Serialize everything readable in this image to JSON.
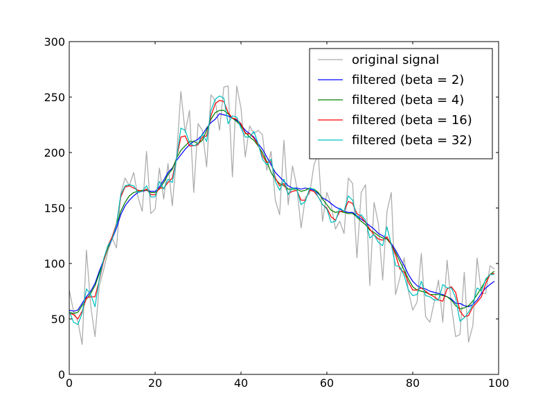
{
  "chart_data": {
    "type": "line",
    "title": "",
    "xlabel": "",
    "ylabel": "",
    "xlim": [
      0,
      100
    ],
    "ylim": [
      0,
      300
    ],
    "xticks": [
      "0",
      "20",
      "40",
      "60",
      "80",
      "100"
    ],
    "yticks": [
      "0",
      "50",
      "100",
      "150",
      "200",
      "250",
      "300"
    ],
    "grid": false,
    "legend_position": "top-right",
    "x": [
      0,
      1,
      2,
      3,
      4,
      5,
      6,
      7,
      8,
      9,
      10,
      11,
      12,
      13,
      14,
      15,
      16,
      17,
      18,
      19,
      20,
      21,
      22,
      23,
      24,
      25,
      26,
      27,
      28,
      29,
      30,
      31,
      32,
      33,
      34,
      35,
      36,
      37,
      38,
      39,
      40,
      41,
      42,
      43,
      44,
      45,
      46,
      47,
      48,
      49,
      50,
      51,
      52,
      53,
      54,
      55,
      56,
      57,
      58,
      59,
      60,
      61,
      62,
      63,
      64,
      65,
      66,
      67,
      68,
      69,
      70,
      71,
      72,
      73,
      74,
      75,
      76,
      77,
      78,
      79,
      80,
      81,
      82,
      83,
      84,
      85,
      86,
      87,
      88,
      89,
      90,
      91,
      92,
      93,
      94,
      95,
      96,
      97,
      98,
      99
    ],
    "series": [
      {
        "name": "original signal",
        "color": "#aaaaaa",
        "values": [
          76,
          57,
          48,
          27,
          112,
          62,
          34,
          80,
          94,
          111,
          123,
          114,
          163,
          177,
          170,
          182,
          160,
          147,
          201,
          145,
          149,
          186,
          158,
          190,
          152,
          197,
          255,
          218,
          238,
          164,
          226,
          220,
          187,
          252,
          247,
          220,
          259,
          260,
          178,
          260,
          240,
          196,
          224,
          217,
          220,
          216,
          184,
          201,
          157,
          144,
          211,
          153,
          188,
          169,
          132,
          160,
          163,
          189,
          199,
          138,
          164,
          153,
          131,
          138,
          127,
          177,
          172,
          105,
          164,
          171,
          80,
          155,
          136,
          85,
          147,
          164,
          72,
          87,
          105,
          75,
          58,
          65,
          109,
          52,
          47,
          65,
          85,
          47,
          103,
          62,
          34,
          36,
          92,
          29,
          44,
          105,
          73,
          73,
          98,
          95
        ]
      },
      {
        "name": "filtered (beta = 2)",
        "color": "#0000ff",
        "values": [
          58,
          57,
          58,
          64,
          70,
          75,
          82,
          93,
          103,
          114,
          122,
          132,
          144,
          152,
          157,
          161,
          164,
          165,
          166,
          165,
          165,
          169,
          175,
          182,
          186,
          193,
          198,
          203,
          207,
          210,
          212,
          216,
          222,
          227,
          230,
          235,
          234,
          233,
          231,
          229,
          225,
          220,
          217,
          214,
          208,
          203,
          196,
          189,
          182,
          178,
          174,
          170,
          168,
          168,
          167,
          168,
          167,
          166,
          163,
          159,
          157,
          154,
          151,
          149,
          147,
          146,
          146,
          143,
          140,
          137,
          134,
          131,
          127,
          125,
          122,
          118,
          112,
          105,
          98,
          90,
          84,
          80,
          78,
          77,
          75,
          74,
          73,
          72,
          70,
          68,
          64,
          64,
          62,
          61,
          63,
          67,
          73,
          78,
          81,
          84
        ]
      },
      {
        "name": "filtered (beta = 4)",
        "color": "#008000",
        "values": [
          56,
          55,
          56,
          62,
          68,
          73,
          80,
          91,
          102,
          114,
          124,
          135,
          147,
          155,
          161,
          164,
          165,
          166,
          166,
          164,
          164,
          167,
          173,
          180,
          185,
          195,
          202,
          206,
          210,
          210,
          208,
          211,
          220,
          230,
          236,
          238,
          238,
          235,
          231,
          228,
          224,
          218,
          214,
          211,
          206,
          200,
          192,
          182,
          176,
          172,
          170,
          167,
          167,
          167,
          165,
          166,
          168,
          167,
          164,
          158,
          153,
          148,
          146,
          147,
          146,
          145,
          145,
          142,
          138,
          135,
          130,
          128,
          125,
          123,
          122,
          117,
          110,
          102,
          94,
          86,
          79,
          76,
          75,
          74,
          72,
          72,
          72,
          71,
          70,
          67,
          62,
          59,
          60,
          62,
          66,
          72,
          78,
          85,
          90,
          93
        ]
      },
      {
        "name": "filtered (beta = 16)",
        "color": "#ff0000",
        "values": [
          55,
          54,
          50,
          57,
          69,
          70,
          70,
          85,
          102,
          116,
          124,
          136,
          160,
          169,
          170,
          168,
          166,
          165,
          167,
          162,
          162,
          168,
          168,
          173,
          177,
          195,
          214,
          215,
          206,
          206,
          207,
          214,
          215,
          233,
          244,
          247,
          246,
          236,
          231,
          230,
          226,
          217,
          217,
          213,
          207,
          197,
          191,
          192,
          177,
          170,
          172,
          163,
          165,
          166,
          157,
          157,
          166,
          165,
          160,
          153,
          150,
          142,
          139,
          147,
          147,
          156,
          154,
          145,
          142,
          137,
          131,
          126,
          122,
          121,
          124,
          117,
          108,
          95,
          92,
          83,
          76,
          76,
          78,
          75,
          72,
          70,
          67,
          66,
          77,
          79,
          74,
          57,
          52,
          53,
          61,
          65,
          70,
          82,
          90,
          91
        ]
      },
      {
        "name": "filtered (beta = 32)",
        "color": "#00bfbf",
        "values": [
          57,
          47,
          45,
          55,
          77,
          72,
          61,
          86,
          104,
          116,
          122,
          135,
          162,
          170,
          171,
          170,
          164,
          165,
          170,
          160,
          160,
          174,
          167,
          176,
          173,
          195,
          222,
          220,
          209,
          206,
          208,
          217,
          210,
          238,
          248,
          251,
          249,
          226,
          233,
          232,
          222,
          214,
          214,
          219,
          208,
          194,
          189,
          194,
          174,
          166,
          176,
          162,
          168,
          167,
          153,
          156,
          168,
          167,
          160,
          153,
          149,
          137,
          138,
          150,
          147,
          161,
          157,
          141,
          144,
          139,
          123,
          126,
          119,
          116,
          133,
          117,
          98,
          97,
          89,
          76,
          71,
          72,
          84,
          71,
          70,
          67,
          67,
          81,
          78,
          78,
          69,
          48,
          51,
          56,
          63,
          78,
          75,
          86,
          90,
          90
        ]
      }
    ]
  }
}
